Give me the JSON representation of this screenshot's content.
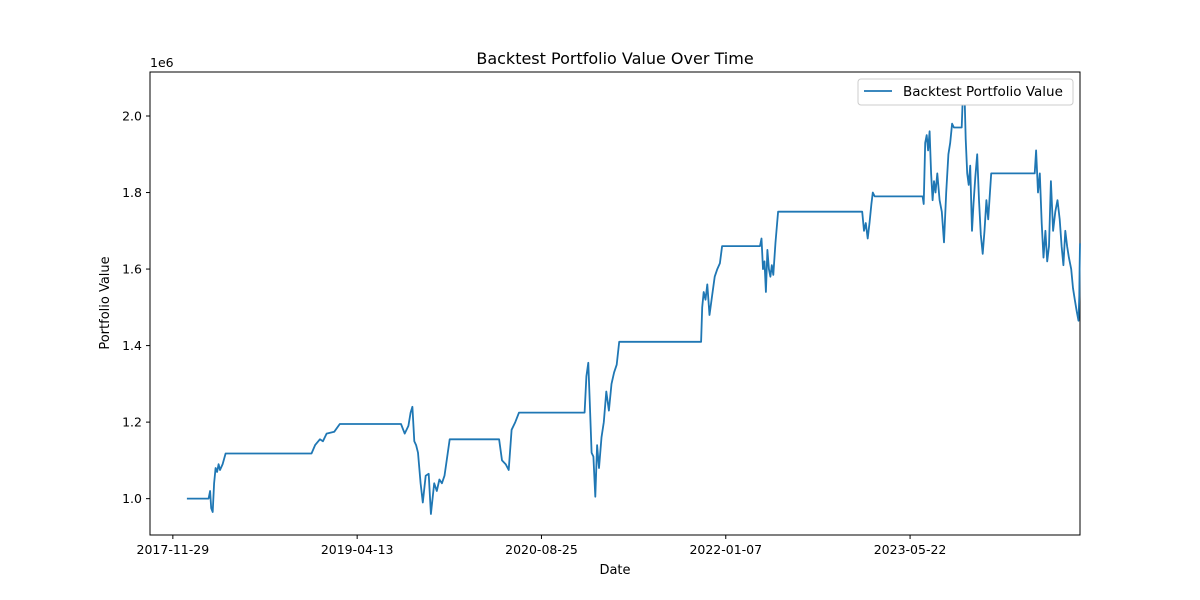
{
  "chart_data": {
    "type": "line",
    "title": "Backtest Portfolio Value Over Time",
    "xlabel": "Date",
    "ylabel": "Portfolio Value",
    "y_scale_label": "1e6",
    "x_ticks": [
      "2017-11-29",
      "2019-04-13",
      "2020-08-25",
      "2022-01-07",
      "2023-05-22"
    ],
    "y_ticks": [
      "1.0",
      "1.2",
      "1.4",
      "1.6",
      "1.8",
      "2.0"
    ],
    "xlim": [
      "2017-09-28",
      "2024-08-25"
    ],
    "ylim": [
      0.905,
      2.115
    ],
    "grid": false,
    "legend_position": "top-right",
    "color": "#1f77b4",
    "series": [
      {
        "name": "Backtest Portfolio Value",
        "points": [
          [
            "2018-01-06",
            1.0
          ],
          [
            "2018-03-06",
            1.0
          ],
          [
            "2018-03-10",
            1.02
          ],
          [
            "2018-03-13",
            0.975
          ],
          [
            "2018-03-17",
            0.965
          ],
          [
            "2018-03-21",
            1.04
          ],
          [
            "2018-03-25",
            1.08
          ],
          [
            "2018-03-29",
            1.07
          ],
          [
            "2018-04-02",
            1.09
          ],
          [
            "2018-04-06",
            1.075
          ],
          [
            "2018-04-13",
            1.09
          ],
          [
            "2018-04-21",
            1.118
          ],
          [
            "2018-12-10",
            1.118
          ],
          [
            "2018-12-20",
            1.14
          ],
          [
            "2019-01-02",
            1.155
          ],
          [
            "2019-01-10",
            1.15
          ],
          [
            "2019-01-20",
            1.17
          ],
          [
            "2019-02-10",
            1.175
          ],
          [
            "2019-02-25",
            1.195
          ],
          [
            "2019-08-10",
            1.195
          ],
          [
            "2019-08-20",
            1.17
          ],
          [
            "2019-08-30",
            1.19
          ],
          [
            "2019-09-05",
            1.225
          ],
          [
            "2019-09-10",
            1.24
          ],
          [
            "2019-09-15",
            1.15
          ],
          [
            "2019-09-20",
            1.14
          ],
          [
            "2019-09-25",
            1.12
          ],
          [
            "2019-10-02",
            1.04
          ],
          [
            "2019-10-08",
            0.99
          ],
          [
            "2019-10-16",
            1.06
          ],
          [
            "2019-10-24",
            1.065
          ],
          [
            "2019-10-30",
            0.96
          ],
          [
            "2019-11-08",
            1.04
          ],
          [
            "2019-11-15",
            1.02
          ],
          [
            "2019-11-22",
            1.05
          ],
          [
            "2019-11-29",
            1.04
          ],
          [
            "2019-12-06",
            1.06
          ],
          [
            "2019-12-12",
            1.1
          ],
          [
            "2019-12-20",
            1.155
          ],
          [
            "2020-05-02",
            1.155
          ],
          [
            "2020-05-10",
            1.1
          ],
          [
            "2020-05-20",
            1.09
          ],
          [
            "2020-05-28",
            1.075
          ],
          [
            "2020-06-05",
            1.18
          ],
          [
            "2020-06-15",
            1.2
          ],
          [
            "2020-06-25",
            1.225
          ],
          [
            "2020-12-20",
            1.225
          ],
          [
            "2020-12-25",
            1.32
          ],
          [
            "2020-12-30",
            1.355
          ],
          [
            "2021-01-03",
            1.25
          ],
          [
            "2021-01-08",
            1.12
          ],
          [
            "2021-01-13",
            1.11
          ],
          [
            "2021-01-18",
            1.005
          ],
          [
            "2021-01-23",
            1.14
          ],
          [
            "2021-01-28",
            1.08
          ],
          [
            "2021-02-04",
            1.16
          ],
          [
            "2021-02-10",
            1.2
          ],
          [
            "2021-02-17",
            1.28
          ],
          [
            "2021-02-24",
            1.23
          ],
          [
            "2021-03-03",
            1.3
          ],
          [
            "2021-03-10",
            1.33
          ],
          [
            "2021-03-17",
            1.35
          ],
          [
            "2021-03-24",
            1.41
          ],
          [
            "2021-11-01",
            1.41
          ],
          [
            "2021-11-04",
            1.5
          ],
          [
            "2021-11-08",
            1.54
          ],
          [
            "2021-11-13",
            1.52
          ],
          [
            "2021-11-18",
            1.56
          ],
          [
            "2021-11-24",
            1.48
          ],
          [
            "2021-12-01",
            1.53
          ],
          [
            "2021-12-08",
            1.58
          ],
          [
            "2021-12-15",
            1.6
          ],
          [
            "2021-12-22",
            1.615
          ],
          [
            "2021-12-28",
            1.66
          ],
          [
            "2022-04-10",
            1.66
          ],
          [
            "2022-04-14",
            1.68
          ],
          [
            "2022-04-18",
            1.6
          ],
          [
            "2022-04-22",
            1.62
          ],
          [
            "2022-04-26",
            1.54
          ],
          [
            "2022-04-30",
            1.65
          ],
          [
            "2022-05-04",
            1.6
          ],
          [
            "2022-05-08",
            1.58
          ],
          [
            "2022-05-12",
            1.61
          ],
          [
            "2022-05-16",
            1.585
          ],
          [
            "2022-05-22",
            1.67
          ],
          [
            "2022-05-29",
            1.75
          ],
          [
            "2023-01-12",
            1.75
          ],
          [
            "2023-01-17",
            1.7
          ],
          [
            "2023-01-22",
            1.72
          ],
          [
            "2023-01-27",
            1.68
          ],
          [
            "2023-02-01",
            1.72
          ],
          [
            "2023-02-06",
            1.77
          ],
          [
            "2023-02-10",
            1.8
          ],
          [
            "2023-02-15",
            1.79
          ],
          [
            "2023-06-25",
            1.79
          ],
          [
            "2023-06-28",
            1.77
          ],
          [
            "2023-07-02",
            1.93
          ],
          [
            "2023-07-06",
            1.95
          ],
          [
            "2023-07-10",
            1.91
          ],
          [
            "2023-07-14",
            1.96
          ],
          [
            "2023-07-18",
            1.85
          ],
          [
            "2023-07-22",
            1.78
          ],
          [
            "2023-07-26",
            1.83
          ],
          [
            "2023-07-30",
            1.8
          ],
          [
            "2023-08-04",
            1.85
          ],
          [
            "2023-08-10",
            1.78
          ],
          [
            "2023-08-16",
            1.75
          ],
          [
            "2023-08-22",
            1.67
          ],
          [
            "2023-08-28",
            1.8
          ],
          [
            "2023-09-03",
            1.9
          ],
          [
            "2023-09-08",
            1.93
          ],
          [
            "2023-09-13",
            1.98
          ],
          [
            "2023-09-18",
            1.97
          ],
          [
            "2023-10-09",
            1.97
          ],
          [
            "2023-10-12",
            2.05
          ],
          [
            "2023-10-16",
            2.08
          ],
          [
            "2023-10-20",
            1.94
          ],
          [
            "2023-10-24",
            1.85
          ],
          [
            "2023-10-28",
            1.82
          ],
          [
            "2023-11-01",
            1.87
          ],
          [
            "2023-11-06",
            1.7
          ],
          [
            "2023-11-10",
            1.77
          ],
          [
            "2023-11-15",
            1.84
          ],
          [
            "2023-11-20",
            1.9
          ],
          [
            "2023-11-25",
            1.78
          ],
          [
            "2023-11-30",
            1.69
          ],
          [
            "2023-12-05",
            1.64
          ],
          [
            "2023-12-10",
            1.7
          ],
          [
            "2023-12-15",
            1.78
          ],
          [
            "2023-12-20",
            1.73
          ],
          [
            "2023-12-28",
            1.85
          ],
          [
            "2024-04-24",
            1.85
          ],
          [
            "2024-04-28",
            1.91
          ],
          [
            "2024-05-03",
            1.8
          ],
          [
            "2024-05-08",
            1.85
          ],
          [
            "2024-05-13",
            1.72
          ],
          [
            "2024-05-18",
            1.63
          ],
          [
            "2024-05-23",
            1.7
          ],
          [
            "2024-05-28",
            1.62
          ],
          [
            "2024-06-02",
            1.66
          ],
          [
            "2024-06-07",
            1.83
          ],
          [
            "2024-06-13",
            1.7
          ],
          [
            "2024-06-19",
            1.75
          ],
          [
            "2024-06-25",
            1.78
          ],
          [
            "2024-07-01",
            1.73
          ],
          [
            "2024-07-06",
            1.66
          ],
          [
            "2024-07-11",
            1.61
          ],
          [
            "2024-07-16",
            1.7
          ],
          [
            "2024-07-21",
            1.66
          ],
          [
            "2024-07-26",
            1.63
          ],
          [
            "2024-08-01",
            1.6
          ],
          [
            "2024-08-06",
            1.55
          ],
          [
            "2024-08-11",
            1.52
          ],
          [
            "2024-08-16",
            1.49
          ],
          [
            "2024-08-21",
            1.465
          ],
          [
            "2024-08-23",
            1.53
          ],
          [
            "2024-08-24",
            1.6
          ],
          [
            "2024-08-25",
            1.667
          ]
        ]
      }
    ]
  }
}
